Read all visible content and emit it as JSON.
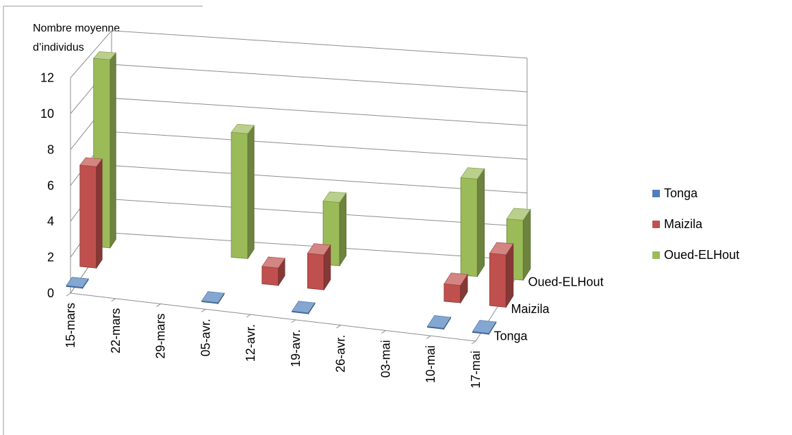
{
  "chart_data": {
    "type": "bar",
    "variant": "3d-column",
    "ylabel_lines": [
      "Nombre  moyenne",
      "d’individus"
    ],
    "categories": [
      "15-mars",
      "22-mars",
      "29-mars",
      "05-avr.",
      "12-avr.",
      "19-avr.",
      "26-avr.",
      "03-mai",
      "10-mai",
      "17-mai"
    ],
    "series": [
      {
        "name": "Tonga",
        "color": "#4F81BD",
        "values": [
          0.05,
          0,
          0,
          0.05,
          0,
          0.05,
          0,
          0,
          0.05,
          0.05
        ]
      },
      {
        "name": "Maizila",
        "color": "#C0504D",
        "values": [
          5.8,
          0,
          0,
          0,
          1,
          2,
          0,
          0,
          1,
          3
        ]
      },
      {
        "name": "Oued-ELHout",
        "color": "#9BBB59",
        "values": [
          11,
          0,
          0,
          7.3,
          0,
          3.7,
          0,
          0,
          5.7,
          3.5
        ]
      }
    ],
    "ylim": [
      0,
      12
    ],
    "yticks": [
      0,
      2,
      4,
      6,
      8,
      10,
      12
    ],
    "grid": true,
    "legend": "right"
  }
}
